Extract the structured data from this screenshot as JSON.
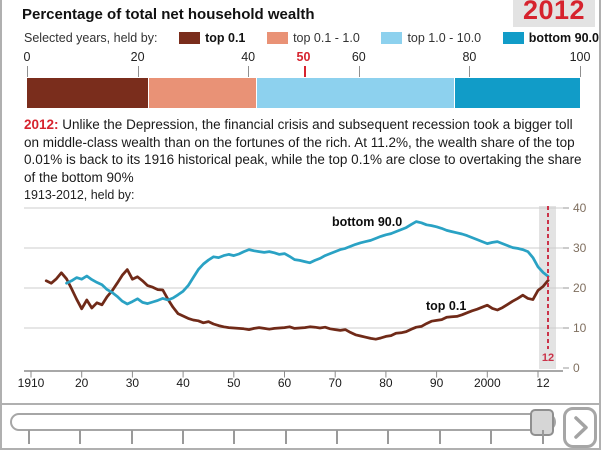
{
  "header": {
    "title": "Percentage of total net household wealth",
    "year_badge": "2012"
  },
  "legend": {
    "label": "Selected years, held by:",
    "items": [
      {
        "label": "top 0.1",
        "color": "#7A2D1C",
        "bold": true
      },
      {
        "label": "top 0.1 - 1.0",
        "color": "#E99276",
        "bold": false
      },
      {
        "label": "top 1.0 - 10.0",
        "color": "#8DD1EE",
        "bold": false
      },
      {
        "label": "bottom 90.0",
        "color": "#119CC8",
        "bold": true
      }
    ]
  },
  "commentary": {
    "year_label": "2012:",
    "text": " Unlike the Depression, the financial crisis and subsequent recession took a bigger toll on middle-class wealth than on the fortunes of the rich. At 11.2%, the wealth share of the top 0.01% is back to its 1916 historical peak, while the top 0.1% are close to overtaking the share of the bottom 90%"
  },
  "colors": {
    "accent_red": "#D6232E",
    "highlight_red": "#CB3349",
    "grid": "#CDCDCD",
    "axis": "#8C8C8C",
    "y_label": "#7F6F5F",
    "band": "#E3E3E3"
  },
  "chart_data": [
    {
      "type": "bar",
      "variant": "stacked-horizontal",
      "title": "Selected years, held by:",
      "year": "2012",
      "categories": [
        "top 0.1",
        "top 0.1 - 1.0",
        "top 1.0 - 10.0",
        "bottom 90.0"
      ],
      "values": [
        22.0,
        19.5,
        35.7,
        22.8
      ],
      "colors": [
        "#7A2D1C",
        "#E99276",
        "#8DD1EE",
        "#119CC8"
      ],
      "axis_ticks": [
        0,
        20,
        40,
        50,
        60,
        80,
        100
      ],
      "highlight_tick": 50,
      "xlim": [
        0,
        100
      ]
    },
    {
      "type": "line",
      "title": "1913-2012, held by:",
      "xlim": [
        1910,
        2013
      ],
      "ylim": [
        0,
        40
      ],
      "grid": true,
      "y_ticks": [
        40,
        30,
        20,
        10,
        0
      ],
      "x_ticks": [
        {
          "x": 1910,
          "label": "1910",
          "tick": true
        },
        {
          "x": 1920,
          "label": "20",
          "tick": true
        },
        {
          "x": 1930,
          "label": "30",
          "tick": true
        },
        {
          "x": 1940,
          "label": "40",
          "tick": true
        },
        {
          "x": 1950,
          "label": "50",
          "tick": true
        },
        {
          "x": 1960,
          "label": "60",
          "tick": true
        },
        {
          "x": 1970,
          "label": "70",
          "tick": true
        },
        {
          "x": 1980,
          "label": "80",
          "tick": true
        },
        {
          "x": 1990,
          "label": "90",
          "tick": true
        },
        {
          "x": 2000,
          "label": "2000",
          "tick": true
        },
        {
          "x": 2010,
          "label": "",
          "tick": true
        },
        {
          "x": 2011,
          "label": "12",
          "tick": false
        }
      ],
      "highlight": {
        "year": 2012,
        "label": "12"
      },
      "series": [
        {
          "name": "top 0.1",
          "color": "#702A18",
          "points": [
            [
              1913,
              21.8
            ],
            [
              1914,
              21.2
            ],
            [
              1915,
              22.3
            ],
            [
              1916,
              23.8
            ],
            [
              1917,
              22.3
            ],
            [
              1918,
              19.8
            ],
            [
              1919,
              17.2
            ],
            [
              1920,
              14.8
            ],
            [
              1921,
              17.0
            ],
            [
              1922,
              15.0
            ],
            [
              1923,
              16.3
            ],
            [
              1924,
              15.8
            ],
            [
              1925,
              17.8
            ],
            [
              1926,
              19.3
            ],
            [
              1927,
              21.2
            ],
            [
              1928,
              23.2
            ],
            [
              1929,
              24.6
            ],
            [
              1930,
              22.2
            ],
            [
              1931,
              22.8
            ],
            [
              1932,
              21.8
            ],
            [
              1933,
              20.6
            ],
            [
              1934,
              20.2
            ],
            [
              1935,
              19.6
            ],
            [
              1936,
              19.5
            ],
            [
              1937,
              17.2
            ],
            [
              1938,
              15.2
            ],
            [
              1939,
              13.6
            ],
            [
              1940,
              13.0
            ],
            [
              1941,
              12.4
            ],
            [
              1942,
              12.0
            ],
            [
              1943,
              11.8
            ],
            [
              1944,
              11.3
            ],
            [
              1945,
              11.6
            ],
            [
              1946,
              11.0
            ],
            [
              1947,
              10.6
            ],
            [
              1948,
              10.3
            ],
            [
              1949,
              10.1
            ],
            [
              1950,
              10.0
            ],
            [
              1951,
              9.9
            ],
            [
              1952,
              9.8
            ],
            [
              1953,
              9.6
            ],
            [
              1954,
              9.9
            ],
            [
              1955,
              10.1
            ],
            [
              1956,
              9.9
            ],
            [
              1957,
              9.7
            ],
            [
              1958,
              9.9
            ],
            [
              1959,
              10.0
            ],
            [
              1960,
              10.1
            ],
            [
              1961,
              10.3
            ],
            [
              1962,
              9.9
            ],
            [
              1963,
              10.0
            ],
            [
              1964,
              10.1
            ],
            [
              1965,
              10.3
            ],
            [
              1966,
              10.2
            ],
            [
              1967,
              10.0
            ],
            [
              1968,
              10.2
            ],
            [
              1969,
              9.8
            ],
            [
              1970,
              9.6
            ],
            [
              1971,
              9.4
            ],
            [
              1972,
              9.6
            ],
            [
              1973,
              8.9
            ],
            [
              1974,
              8.3
            ],
            [
              1975,
              8.0
            ],
            [
              1976,
              7.7
            ],
            [
              1977,
              7.4
            ],
            [
              1978,
              7.2
            ],
            [
              1979,
              7.5
            ],
            [
              1980,
              7.9
            ],
            [
              1981,
              8.1
            ],
            [
              1982,
              8.7
            ],
            [
              1983,
              8.8
            ],
            [
              1984,
              9.1
            ],
            [
              1985,
              9.7
            ],
            [
              1986,
              10.2
            ],
            [
              1987,
              10.4
            ],
            [
              1988,
              11.1
            ],
            [
              1989,
              11.7
            ],
            [
              1990,
              11.9
            ],
            [
              1991,
              12.1
            ],
            [
              1992,
              12.7
            ],
            [
              1993,
              12.8
            ],
            [
              1994,
              12.9
            ],
            [
              1995,
              13.3
            ],
            [
              1996,
              13.8
            ],
            [
              1997,
              14.3
            ],
            [
              1998,
              14.7
            ],
            [
              1999,
              15.2
            ],
            [
              2000,
              15.7
            ],
            [
              2001,
              14.9
            ],
            [
              2002,
              14.5
            ],
            [
              2003,
              15.1
            ],
            [
              2004,
              15.9
            ],
            [
              2005,
              16.7
            ],
            [
              2006,
              17.4
            ],
            [
              2007,
              18.2
            ],
            [
              2008,
              17.4
            ],
            [
              2009,
              17.1
            ],
            [
              2010,
              19.4
            ],
            [
              2011,
              20.4
            ],
            [
              2012,
              21.9
            ]
          ]
        },
        {
          "name": "bottom 90.0",
          "color": "#2AA2C4",
          "points": [
            [
              1917,
              21.2
            ],
            [
              1918,
              21.8
            ],
            [
              1919,
              22.6
            ],
            [
              1920,
              22.2
            ],
            [
              1921,
              23.0
            ],
            [
              1922,
              22.1
            ],
            [
              1923,
              21.4
            ],
            [
              1924,
              20.8
            ],
            [
              1925,
              19.6
            ],
            [
              1926,
              18.9
            ],
            [
              1927,
              17.9
            ],
            [
              1928,
              16.7
            ],
            [
              1929,
              16.0
            ],
            [
              1930,
              16.6
            ],
            [
              1931,
              17.3
            ],
            [
              1932,
              16.4
            ],
            [
              1933,
              16.1
            ],
            [
              1934,
              16.5
            ],
            [
              1935,
              16.9
            ],
            [
              1936,
              17.4
            ],
            [
              1937,
              17.0
            ],
            [
              1938,
              17.5
            ],
            [
              1939,
              18.3
            ],
            [
              1940,
              19.2
            ],
            [
              1941,
              20.6
            ],
            [
              1942,
              22.6
            ],
            [
              1943,
              24.6
            ],
            [
              1944,
              26.0
            ],
            [
              1945,
              27.0
            ],
            [
              1946,
              27.8
            ],
            [
              1947,
              27.6
            ],
            [
              1948,
              28.1
            ],
            [
              1949,
              28.4
            ],
            [
              1950,
              28.1
            ],
            [
              1951,
              28.5
            ],
            [
              1952,
              29.1
            ],
            [
              1953,
              29.6
            ],
            [
              1954,
              29.3
            ],
            [
              1955,
              29.1
            ],
            [
              1956,
              28.9
            ],
            [
              1957,
              29.1
            ],
            [
              1958,
              28.8
            ],
            [
              1959,
              28.4
            ],
            [
              1960,
              28.6
            ],
            [
              1961,
              27.9
            ],
            [
              1962,
              27.1
            ],
            [
              1963,
              26.9
            ],
            [
              1964,
              26.6
            ],
            [
              1965,
              26.3
            ],
            [
              1966,
              26.9
            ],
            [
              1967,
              27.4
            ],
            [
              1968,
              28.1
            ],
            [
              1969,
              28.6
            ],
            [
              1970,
              29.1
            ],
            [
              1971,
              29.6
            ],
            [
              1972,
              29.9
            ],
            [
              1973,
              30.4
            ],
            [
              1974,
              30.9
            ],
            [
              1975,
              31.3
            ],
            [
              1976,
              31.6
            ],
            [
              1977,
              31.9
            ],
            [
              1978,
              32.4
            ],
            [
              1979,
              32.9
            ],
            [
              1980,
              33.3
            ],
            [
              1981,
              33.6
            ],
            [
              1982,
              34.1
            ],
            [
              1983,
              34.6
            ],
            [
              1984,
              35.1
            ],
            [
              1985,
              35.9
            ],
            [
              1986,
              36.6
            ],
            [
              1987,
              36.3
            ],
            [
              1988,
              35.8
            ],
            [
              1989,
              35.6
            ],
            [
              1990,
              35.3
            ],
            [
              1991,
              34.9
            ],
            [
              1992,
              34.4
            ],
            [
              1993,
              34.1
            ],
            [
              1994,
              33.8
            ],
            [
              1995,
              33.5
            ],
            [
              1996,
              33.1
            ],
            [
              1997,
              32.6
            ],
            [
              1998,
              32.1
            ],
            [
              1999,
              31.6
            ],
            [
              2000,
              31.1
            ],
            [
              2001,
              31.4
            ],
            [
              2002,
              31.6
            ],
            [
              2003,
              31.1
            ],
            [
              2004,
              30.6
            ],
            [
              2005,
              30.1
            ],
            [
              2006,
              29.9
            ],
            [
              2007,
              29.6
            ],
            [
              2008,
              29.1
            ],
            [
              2009,
              27.6
            ],
            [
              2010,
              25.3
            ],
            [
              2011,
              23.9
            ],
            [
              2012,
              22.9
            ]
          ]
        }
      ]
    }
  ],
  "slider": {
    "tick_count": 11,
    "range": [
      1913,
      2012
    ],
    "value_year": 2012,
    "icons": {
      "next": "chevron-right"
    }
  }
}
